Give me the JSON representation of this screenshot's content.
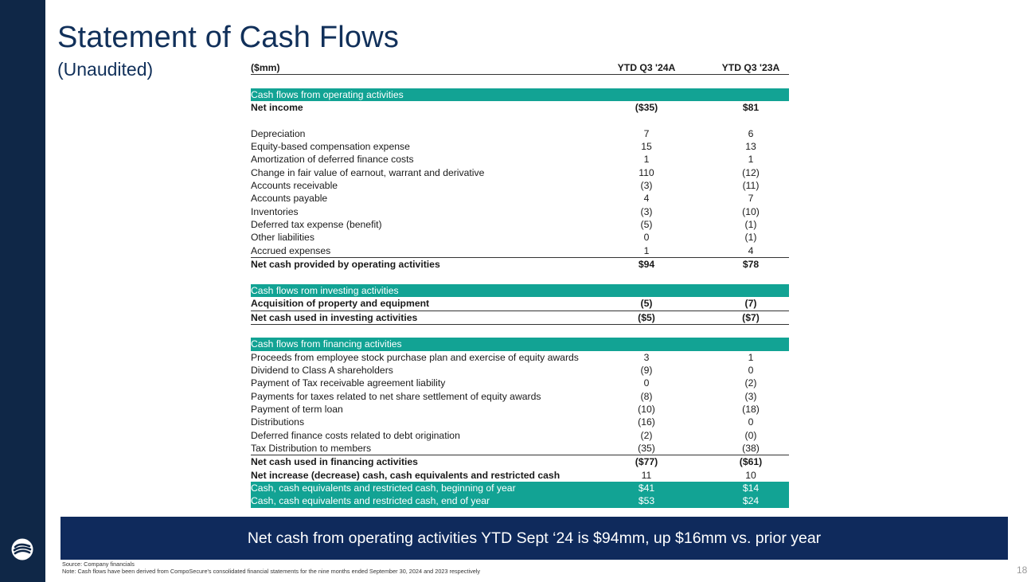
{
  "slide": {
    "title": "Statement of Cash Flows",
    "subtitle": "(Unaudited)",
    "page_number": "18"
  },
  "table": {
    "unit_label": "($mm)",
    "col1_header": "YTD Q3 '24A",
    "col2_header": "YTD Q3 '23A",
    "operating": {
      "section_label": "Cash flows from operating activities",
      "net_income": {
        "label": "Net income",
        "v1": "($35)",
        "v2": "$81"
      },
      "rows": [
        {
          "label": "Depreciation",
          "v1": "7",
          "v2": "6"
        },
        {
          "label": "Equity-based compensation expense",
          "v1": "15",
          "v2": "13"
        },
        {
          "label": "Amortization of deferred finance costs",
          "v1": "1",
          "v2": "1"
        },
        {
          "label": "Change in fair value of earnout, warrant and derivative",
          "v1": "110",
          "v2": "(12)"
        },
        {
          "label": "Accounts receivable",
          "v1": "(3)",
          "v2": "(11)"
        },
        {
          "label": "Accounts payable",
          "v1": "4",
          "v2": "7"
        },
        {
          "label": "Inventories",
          "v1": "(3)",
          "v2": "(10)"
        },
        {
          "label": "Deferred tax expense (benefit)",
          "v1": "(5)",
          "v2": "(1)"
        },
        {
          "label": "Other liabilities",
          "v1": "0",
          "v2": "(1)"
        },
        {
          "label": "Accrued expenses",
          "v1": "1",
          "v2": "4"
        }
      ],
      "total": {
        "label": "Net cash provided by operating activities",
        "v1": "$94",
        "v2": "$78"
      }
    },
    "investing": {
      "section_label": "Cash flows rom investing activities",
      "rows": [
        {
          "label": "Acquisition of property and equipment",
          "v1": "(5)",
          "v2": "(7)"
        }
      ],
      "total": {
        "label": "Net cash used in investing activities",
        "v1": "($5)",
        "v2": "($7)"
      }
    },
    "financing": {
      "section_label": "Cash flows from financing activities",
      "rows": [
        {
          "label": "Proceeds from employee stock purchase plan and exercise of equity awards",
          "v1": "3",
          "v2": "1"
        },
        {
          "label": "Dividend to Class A shareholders",
          "v1": "(9)",
          "v2": "0"
        },
        {
          "label": "Payment of Tax receivable agreement liability",
          "v1": "0",
          "v2": "(2)"
        },
        {
          "label": "Payments for taxes related to net share settlement of equity awards",
          "v1": "(8)",
          "v2": "(3)"
        },
        {
          "label": "Payment of term loan",
          "v1": "(10)",
          "v2": "(18)"
        },
        {
          "label": "Distributions",
          "v1": "(16)",
          "v2": "0"
        },
        {
          "label": "Deferred finance costs related to debt origination",
          "v1": "(2)",
          "v2": "(0)"
        },
        {
          "label": "Tax Distribution to members",
          "v1": "(35)",
          "v2": "(38)"
        }
      ],
      "total": {
        "label": "Net cash used in financing activities",
        "v1": "($77)",
        "v2": "($61)"
      }
    },
    "net_change": {
      "label": "Net increase (decrease) cash, cash equivalents and restricted cash",
      "v1": "11",
      "v2": "10"
    },
    "beginning": {
      "label": "Cash, cash equivalents and restricted cash, beginning of year",
      "v1": "$41",
      "v2": "$14"
    },
    "ending": {
      "label": "Cash, cash equivalents and restricted cash, end of year",
      "v1": "$53",
      "v2": "$24"
    }
  },
  "callout": {
    "text": "Net cash from operating activities YTD Sept ‘24 is $94mm, up $16mm vs. prior year"
  },
  "footnotes": {
    "source": "Source: Company financials",
    "note": "Note: Cash flows have been derived from CompoSecure's consolidated financial statements for the nine months ended September 30, 2024 and 2023 respectively"
  },
  "colors": {
    "navy": "#0f2747",
    "teal": "#12a394",
    "callout_bg": "#0f2a5c"
  }
}
